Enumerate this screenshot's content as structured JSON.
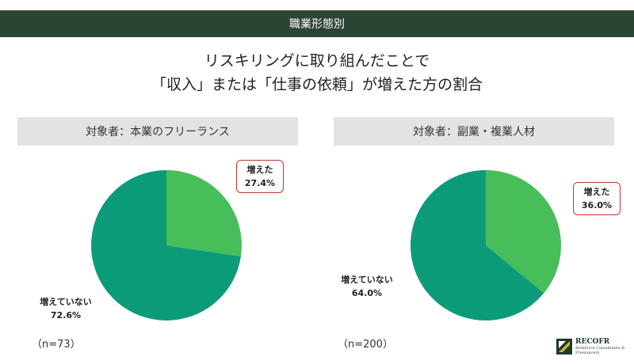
{
  "header": {
    "label": "職業形態別"
  },
  "title": {
    "line1": "リスキリングに取り組んだことで",
    "line2": "「収入」または「仕事の依頼」が増えた方の割合"
  },
  "colors": {
    "increased": "#47be5a",
    "not_increased": "#0c9b79",
    "header_bg": "#2c4434",
    "callout_border": "#c0392b"
  },
  "chart_data": [
    {
      "type": "pie",
      "title": "対象者：本業のフリーランス",
      "slices": [
        {
          "label": "増えた",
          "value": 27.4,
          "display": "27.4%"
        },
        {
          "label": "増えていない",
          "value": 72.6,
          "display": "72.6%"
        }
      ],
      "note": "（n=73）"
    },
    {
      "type": "pie",
      "title": "対象者：副業・複業人材",
      "slices": [
        {
          "label": "増えた",
          "value": 36.0,
          "display": "36.0%"
        },
        {
          "label": "増えていない",
          "value": 64.0,
          "display": "64.0%"
        }
      ],
      "note": "（n=200）"
    }
  ],
  "logo": {
    "name": "RECOFR",
    "tagline1": "Reinforce Consultants &",
    "tagline2": "Freelancers"
  }
}
